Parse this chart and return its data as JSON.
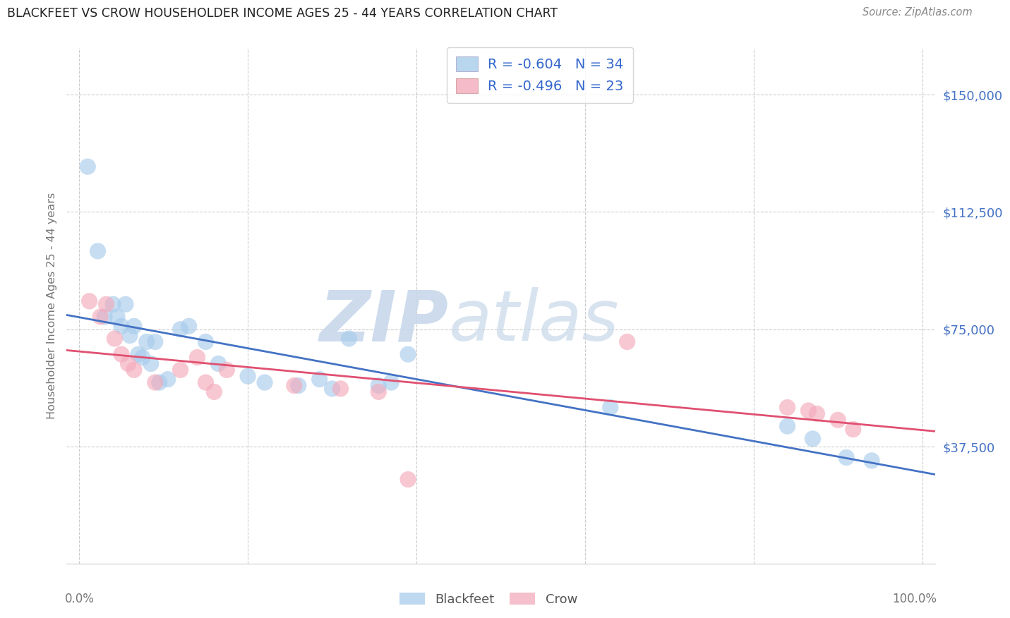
{
  "title": "BLACKFEET VS CROW HOUSEHOLDER INCOME AGES 25 - 44 YEARS CORRELATION CHART",
  "source": "Source: ZipAtlas.com",
  "ylabel": "Householder Income Ages 25 - 44 years",
  "ytick_labels": [
    "$37,500",
    "$75,000",
    "$112,500",
    "$150,000"
  ],
  "ytick_values": [
    37500,
    75000,
    112500,
    150000
  ],
  "ymin": 0,
  "ymax": 165000,
  "xmin": -0.015,
  "xmax": 1.015,
  "blackfeet_R": "-0.604",
  "blackfeet_N": "34",
  "crow_R": "-0.496",
  "crow_N": "23",
  "blackfeet_dot_color": "#a8ccec",
  "crow_dot_color": "#f4aabb",
  "blackfeet_line_color": "#4472c4",
  "crow_line_color": "#e05070",
  "legend_text_color": "#3366cc",
  "title_color": "#222222",
  "source_color": "#888888",
  "axis_label_color": "#777777",
  "tick_label_color": "#4472c4",
  "grid_color": "#cccccc",
  "watermark_zip_color": "#c8d8ea",
  "watermark_atlas_color": "#c8d8ea",
  "blackfeet_x": [
    0.01,
    0.022,
    0.03,
    0.04,
    0.045,
    0.05,
    0.055,
    0.06,
    0.065,
    0.07,
    0.075,
    0.08,
    0.085,
    0.09,
    0.095,
    0.105,
    0.12,
    0.13,
    0.15,
    0.165,
    0.2,
    0.22,
    0.26,
    0.285,
    0.3,
    0.32,
    0.355,
    0.37,
    0.39,
    0.63,
    0.84,
    0.87,
    0.91,
    0.94
  ],
  "blackfeet_y": [
    127000,
    100000,
    79000,
    83000,
    79000,
    76000,
    83000,
    73000,
    76000,
    67000,
    66000,
    71000,
    64000,
    71000,
    58000,
    59000,
    75000,
    76000,
    71000,
    64000,
    60000,
    58000,
    57000,
    59000,
    56000,
    72000,
    57000,
    58000,
    67000,
    50000,
    44000,
    40000,
    34000,
    33000
  ],
  "crow_x": [
    0.012,
    0.025,
    0.032,
    0.042,
    0.05,
    0.058,
    0.065,
    0.09,
    0.12,
    0.14,
    0.15,
    0.16,
    0.175,
    0.255,
    0.31,
    0.355,
    0.39,
    0.65,
    0.84,
    0.865,
    0.875,
    0.9,
    0.918
  ],
  "crow_y": [
    84000,
    79000,
    83000,
    72000,
    67000,
    64000,
    62000,
    58000,
    62000,
    66000,
    58000,
    55000,
    62000,
    57000,
    56000,
    55000,
    27000,
    71000,
    50000,
    49000,
    48000,
    46000,
    43000
  ]
}
